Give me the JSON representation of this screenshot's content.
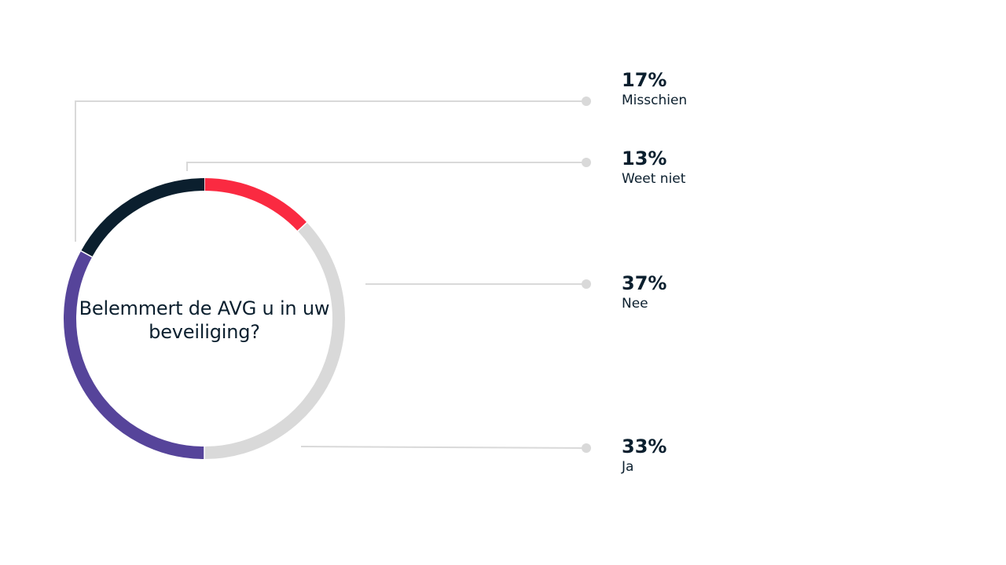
{
  "chart_data": {
    "type": "pie",
    "title": "Belemmert de AVG u in uw beveiliging?",
    "order": [
      "Weet niet",
      "Nee",
      "Ja",
      "Misschien"
    ],
    "slices": [
      {
        "label": "Misschien",
        "value": 17,
        "display": "17%",
        "color": "#0b1f2e"
      },
      {
        "label": "Weet niet",
        "value": 13,
        "display": "13%",
        "color": "#fa2a41"
      },
      {
        "label": "Nee",
        "value": 37,
        "display": "37%",
        "color": "#d9d9d9"
      },
      {
        "label": "Ja",
        "value": 33,
        "display": "33%",
        "color": "#56449a"
      }
    ],
    "colors": {
      "leader_line": "#d9d9d9",
      "leader_dot": "#d9d9d9",
      "text": "#0b1f2e"
    }
  }
}
